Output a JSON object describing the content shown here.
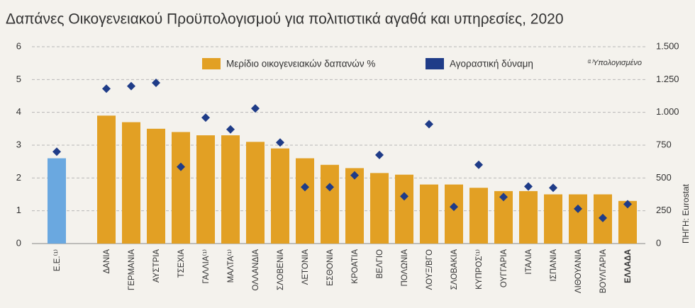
{
  "chart_data": {
    "type": "bar",
    "title": "Δαπάνες Οικογενειακού Προϋπολογισμού για πολιτιστικά αγαθά και υπηρεσίες, 2020",
    "categories": [
      "Ε.Ε.⁽¹⁾",
      "ΔΑΝΙΑ",
      "ΓΕΡΜΑΝΙΑ",
      "ΑΥΣΤΡΙΑ",
      "ΤΣΕΧΙΑ",
      "ΓΑΛΛΙΑ⁽¹⁾",
      "ΜΑΛΤΑ⁽¹⁾",
      "ΟΛΛΑΝΔΙΑ",
      "ΣΛΟΒΕΝΙΑ",
      "ΛΕΤΟΝΙΑ",
      "ΕΣΘΟΝΙΑ",
      "ΚΡΟΑΤΙΑ",
      "ΒΕΛΓΙΟ",
      "ΠΟΛΩΝΙΑ",
      "ΛΟΥΞ/ΒΓΟ",
      "ΣΛΟΒΑΚΙΑ",
      "ΚΥΠΡΟΣ⁽¹⁾",
      "ΟΥΓΓΑΡΙΑ",
      "ΙΤΑΛΙΑ",
      "ΙΣΠΑΝΙΑ",
      "ΛΙΘΟΥΑΝΙΑ",
      "ΒΟΥΛΓΑΡΙΑ",
      "ΕΛΛΑΔΑ"
    ],
    "series": [
      {
        "name": "Μερίδιο οικογενειακών δαπανών %",
        "color": "#e2a024",
        "point_colors": [
          "#6aa8e0"
        ],
        "values": [
          2.6,
          3.9,
          3.7,
          3.5,
          3.4,
          3.3,
          3.3,
          3.1,
          2.9,
          2.6,
          2.4,
          2.3,
          2.15,
          2.1,
          1.8,
          1.8,
          1.7,
          1.6,
          1.6,
          1.5,
          1.5,
          1.5,
          1.3
        ]
      },
      {
        "name": "Αγοραστική δύναμη",
        "color": "#1f3c88",
        "axis": "y2",
        "marker": "diamond",
        "values": [
          700,
          1180,
          1200,
          1225,
          585,
          960,
          870,
          1030,
          770,
          430,
          430,
          520,
          675,
          360,
          910,
          280,
          600,
          355,
          435,
          425,
          265,
          195,
          300
        ]
      }
    ],
    "ylim": [
      0,
      6
    ],
    "yticks": [
      0,
      1,
      2,
      3,
      4,
      5,
      6
    ],
    "y2lim": [
      0,
      1500
    ],
    "y2ticks": [
      0,
      250,
      500,
      750,
      {
        "value": 1000,
        "label": "1.000"
      },
      {
        "value": 1250,
        "label": "1.250"
      },
      {
        "value": 1500,
        "label": "1.500"
      }
    ],
    "grid": true,
    "note": "⁽¹⁾Υπολογισμένο",
    "source": "ΠΗΓΗ: Eurostat"
  }
}
